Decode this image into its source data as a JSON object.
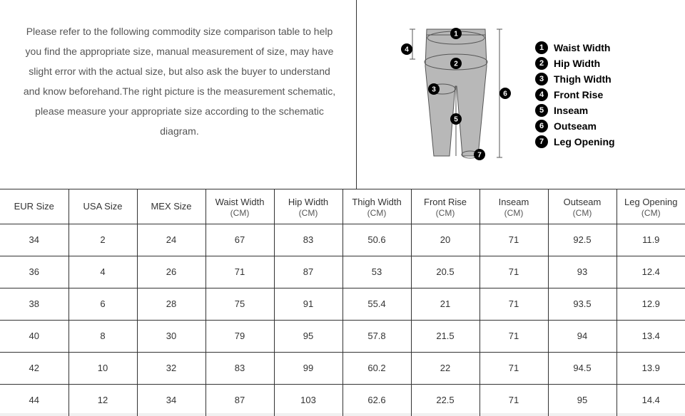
{
  "intro": {
    "text": "Please refer to the following commodity size comparison table to help you find the appropriate size, manual measurement of size, may have slight error with the actual size, but also ask the buyer to understand and know beforehand.The right picture is the measurement schematic, please measure your appropriate size according to the schematic diagram."
  },
  "diagram": {
    "pants_fill": "#b8b8b8",
    "pants_stroke": "#555555",
    "marker_bg": "#000000",
    "marker_fg": "#ffffff",
    "guide_color": "#555555",
    "legend": [
      {
        "num": "1",
        "label": "Waist Width"
      },
      {
        "num": "2",
        "label": "Hip Width"
      },
      {
        "num": "3",
        "label": "Thigh Width"
      },
      {
        "num": "4",
        "label": "Front Rise"
      },
      {
        "num": "5",
        "label": "Inseam"
      },
      {
        "num": "6",
        "label": "Outseam"
      },
      {
        "num": "7",
        "label": "Leg Opening"
      }
    ]
  },
  "table": {
    "unit_suffix": "(CM)",
    "columns": [
      {
        "title": "EUR Size",
        "unit": ""
      },
      {
        "title": "USA Size",
        "unit": ""
      },
      {
        "title": "MEX Size",
        "unit": ""
      },
      {
        "title": "Waist Width",
        "unit": "(CM)"
      },
      {
        "title": "Hip Width",
        "unit": "(CM)"
      },
      {
        "title": "Thigh Width",
        "unit": "(CM)"
      },
      {
        "title": "Front Rise",
        "unit": "(CM)"
      },
      {
        "title": "Inseam",
        "unit": "(CM)"
      },
      {
        "title": "Outseam",
        "unit": "(CM)"
      },
      {
        "title": "Leg Opening",
        "unit": "(CM)"
      }
    ],
    "rows": [
      [
        "34",
        "2",
        "24",
        "67",
        "83",
        "50.6",
        "20",
        "71",
        "92.5",
        "11.9"
      ],
      [
        "36",
        "4",
        "26",
        "71",
        "87",
        "53",
        "20.5",
        "71",
        "93",
        "12.4"
      ],
      [
        "38",
        "6",
        "28",
        "75",
        "91",
        "55.4",
        "21",
        "71",
        "93.5",
        "12.9"
      ],
      [
        "40",
        "8",
        "30",
        "79",
        "95",
        "57.8",
        "21.5",
        "71",
        "94",
        "13.4"
      ],
      [
        "42",
        "10",
        "32",
        "83",
        "99",
        "60.2",
        "22",
        "71",
        "94.5",
        "13.9"
      ],
      [
        "44",
        "12",
        "34",
        "87",
        "103",
        "62.6",
        "22.5",
        "71",
        "95",
        "14.4"
      ]
    ]
  }
}
